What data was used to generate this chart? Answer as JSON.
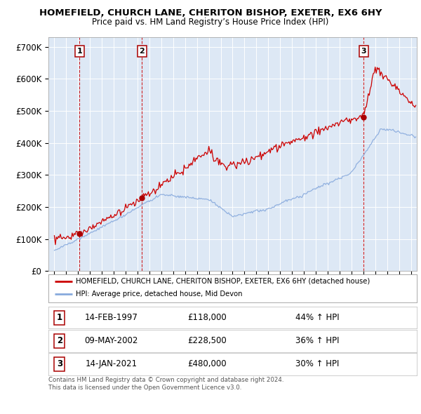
{
  "title": "HOMEFIELD, CHURCH LANE, CHERITON BISHOP, EXETER, EX6 6HY",
  "subtitle": "Price paid vs. HM Land Registry’s House Price Index (HPI)",
  "legend_line1": "HOMEFIELD, CHURCH LANE, CHERITON BISHOP, EXETER, EX6 6HY (detached house)",
  "legend_line2": "HPI: Average price, detached house, Mid Devon",
  "sale1_date": "14-FEB-1997",
  "sale1_price_str": "£118,000",
  "sale1_hpi": "44% ↑ HPI",
  "sale1_x": 1997.12,
  "sale1_y": 118000,
  "sale2_date": "09-MAY-2002",
  "sale2_price_str": "£228,500",
  "sale2_hpi": "36% ↑ HPI",
  "sale2_x": 2002.37,
  "sale2_y": 228500,
  "sale3_date": "14-JAN-2021",
  "sale3_price_str": "£480,000",
  "sale3_hpi": "30% ↑ HPI",
  "sale3_x": 2021.04,
  "sale3_y": 480000,
  "footnote": "Contains HM Land Registry data © Crown copyright and database right 2024.\nThis data is licensed under the Open Government Licence v3.0.",
  "price_line_color": "#cc0000",
  "hpi_line_color": "#88aadd",
  "background_color": "#dde8f5",
  "plot_bg_color": "#ffffff",
  "ylim": [
    0,
    730000
  ],
  "yticks": [
    0,
    100000,
    200000,
    300000,
    400000,
    500000,
    600000,
    700000
  ],
  "ytick_labels": [
    "£0",
    "£100K",
    "£200K",
    "£300K",
    "£400K",
    "£500K",
    "£600K",
    "£700K"
  ],
  "xlim_start": 1995.0,
  "xlim_end": 2025.5,
  "sale_marker_color": "#aa0000",
  "vline_color": "#cc0000"
}
